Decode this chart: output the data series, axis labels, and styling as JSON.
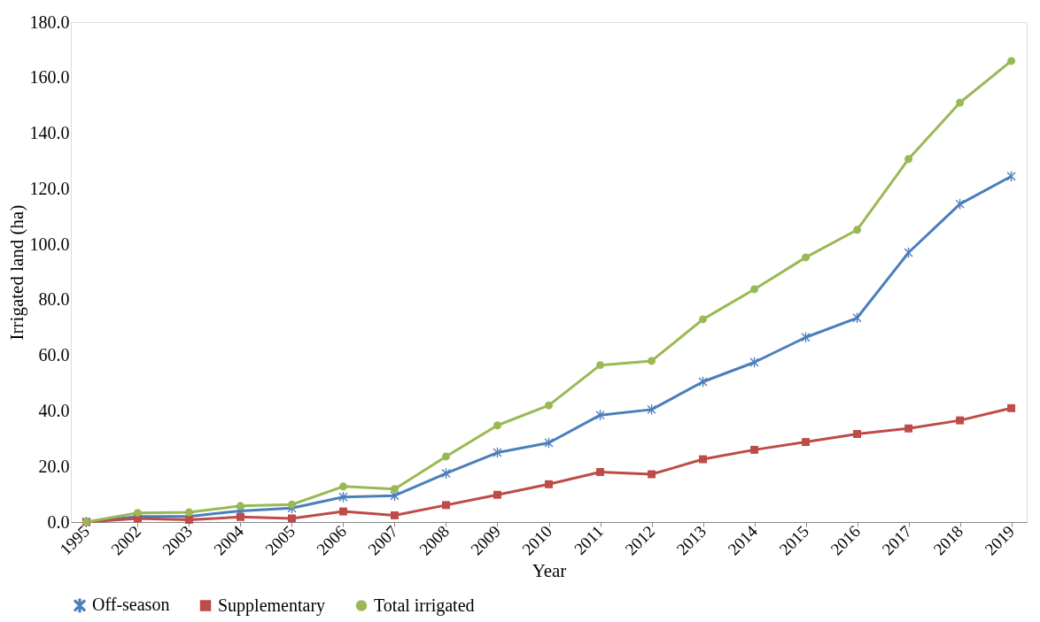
{
  "chart_data": {
    "type": "line",
    "xlabel": "Year",
    "ylabel": "Irrigated land (ha)",
    "categories": [
      "1995",
      "2002",
      "2003",
      "2004",
      "2005",
      "2006",
      "2007",
      "2008",
      "2009",
      "2010",
      "2011",
      "2012",
      "2013",
      "2014",
      "2015",
      "2016",
      "2017",
      "2018",
      "2019"
    ],
    "series": [
      {
        "name": "Off-season",
        "color": "#4a7ebb",
        "marker": "cross",
        "values": [
          0,
          2.0,
          2.0,
          4.0,
          5.0,
          9.0,
          9.5,
          17.5,
          25.0,
          28.5,
          38.5,
          40.5,
          50.5,
          57.5,
          66.5,
          73.5,
          97.0,
          114.5,
          124.5
        ]
      },
      {
        "name": "Supplementary",
        "color": "#be4b48",
        "marker": "square",
        "values": [
          0,
          1.3,
          0.8,
          1.8,
          1.3,
          3.8,
          2.4,
          6.1,
          9.8,
          13.6,
          18.0,
          17.2,
          22.6,
          26.0,
          28.8,
          31.7,
          33.7,
          36.6,
          41.0
        ]
      },
      {
        "name": "Total irrigated",
        "color": "#98b954",
        "marker": "circle",
        "values": [
          0,
          3.3,
          3.5,
          5.8,
          6.3,
          12.8,
          11.9,
          23.6,
          34.8,
          42.0,
          56.5,
          58.0,
          73.0,
          83.8,
          95.3,
          105.2,
          130.7,
          151.0,
          166.0
        ]
      }
    ],
    "ylim": [
      0,
      180
    ],
    "yticks": [
      {
        "value": 0,
        "label": "0.0"
      },
      {
        "value": 20,
        "label": "20.0"
      },
      {
        "value": 40,
        "label": "40.0"
      },
      {
        "value": 60,
        "label": "60.0"
      },
      {
        "value": 80,
        "label": "80.0"
      },
      {
        "value": 100,
        "label": "100.0"
      },
      {
        "value": 120,
        "label": "120.0"
      },
      {
        "value": 140,
        "label": "140.0"
      },
      {
        "value": 160,
        "label": "160.0"
      },
      {
        "value": 180,
        "label": "180.0"
      }
    ],
    "grid": false,
    "legend": "bottom",
    "line_style": "solid"
  }
}
